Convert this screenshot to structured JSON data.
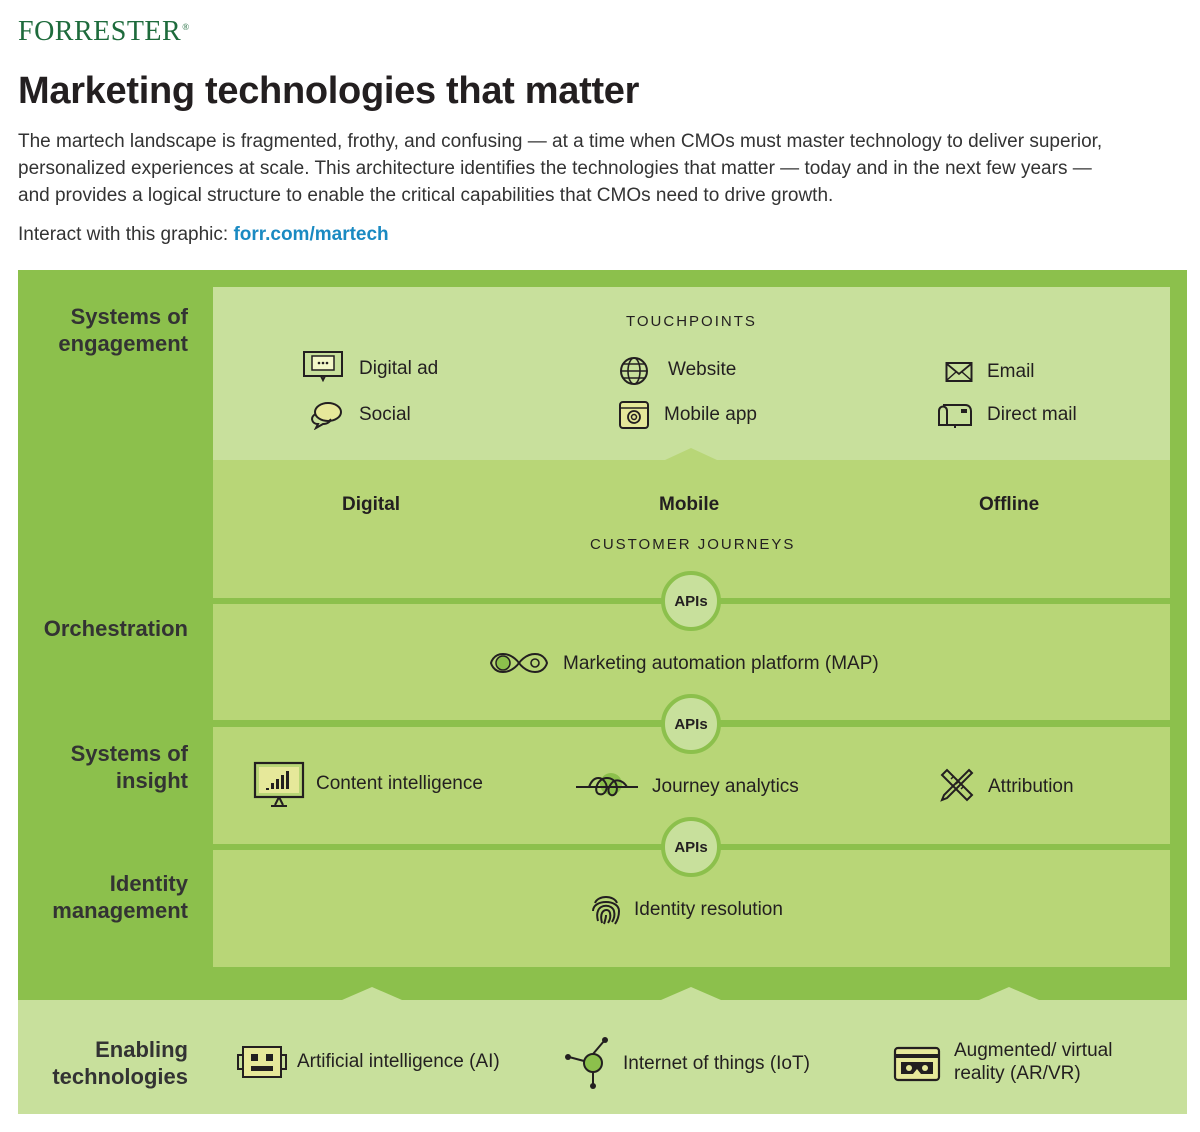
{
  "brand": {
    "logo_text": "FORRESTER",
    "logo_mark": "®"
  },
  "header": {
    "title": "Marketing technologies that matter",
    "intro": "The martech landscape is fragmented, frothy, and confusing — at a time when CMOs must master technology to deliver superior, personalized experiences at scale. This architecture identifies the technologies that matter — today and in the next few years — and provides a logical structure to enable the critical capabilities that CMOs need to drive growth.",
    "interact_label": "Interact with this graphic: ",
    "interact_link": "forr.com/martech"
  },
  "layers": {
    "engagement": "Systems of\nengagement",
    "orchestration": "Orchestration",
    "insight": "Systems of\ninsight",
    "identity": "Identity\nmanagement",
    "enabling": "Enabling\ntechnologies"
  },
  "touchpoints": {
    "heading": "TOUCHPOINTS",
    "items": [
      "Digital ad",
      "Website",
      "Email",
      "Social",
      "Mobile app",
      "Direct mail"
    ]
  },
  "journeys": {
    "columns": [
      "Digital",
      "Mobile",
      "Offline"
    ],
    "heading": "CUSTOMER JOURNEYS"
  },
  "apis": {
    "label": "APIs"
  },
  "orchestration_items": [
    "Marketing automation platform (MAP)"
  ],
  "insight_items": [
    "Content intelligence",
    "Journey analytics",
    "Attribution"
  ],
  "identity_items": [
    "Identity resolution"
  ],
  "enabling_items": [
    "Artificial intelligence (AI)",
    "Internet of things (IoT)",
    "Augmented/ virtual\nreality (AR/VR)"
  ],
  "colors": {
    "frame": "#8cc04c",
    "light_panel": "#c8e09c",
    "mid_panel": "#b8d677",
    "link": "#1a8ac2",
    "logo": "#1e6b3c"
  }
}
